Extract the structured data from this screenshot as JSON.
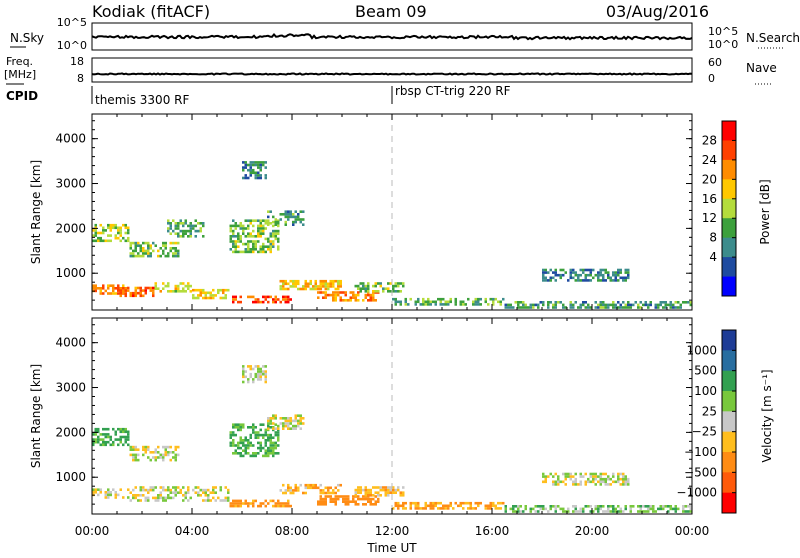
{
  "header": {
    "title": "Kodiak (fitACF)",
    "beam": "Beam 09",
    "date": "03/Aug/2016"
  },
  "summary": {
    "nsky_label": "N.Sky",
    "nsky_ticks": [
      "10^5",
      "10^0"
    ],
    "nsearch_label": "N.Search",
    "nsearch_ticks": [
      "10^5",
      "10^0"
    ],
    "freq_label": "Freq.",
    "freq_unit": "[MHz]",
    "freq_ticks": [
      "18",
      "8"
    ],
    "nave_label": "Nave",
    "nave_ticks": [
      "60",
      "0"
    ],
    "cpid_label": "CPID",
    "cpid_segments": [
      {
        "name": "themis 3300 RF",
        "start_hour": 0
      },
      {
        "name": "rbsp CT-trig 220 RF",
        "start_hour": 12
      }
    ]
  },
  "axes": {
    "xlabel": "Time UT",
    "x_ticks": [
      "00:00",
      "04:00",
      "08:00",
      "12:00",
      "16:00",
      "20:00",
      "00:00"
    ],
    "ylabel": "Slant Range [km]",
    "y_ticks": [
      "4000",
      "3000",
      "2000",
      "1000"
    ]
  },
  "power_colorbar": {
    "label": "Power [dB]",
    "ticks": [
      "28",
      "24",
      "20",
      "16",
      "12",
      "8",
      "4"
    ],
    "colors": [
      "#ff0000",
      "#ff4000",
      "#ff8c00",
      "#ffc800",
      "#b4dc3c",
      "#3ca03c",
      "#3c8c8c",
      "#1e4ba0",
      "#0000ff"
    ]
  },
  "velocity_colorbar": {
    "label": "Velocity [m s⁻¹]",
    "ticks": [
      "1000",
      "500",
      "100",
      "25",
      "−25",
      "−100",
      "−500",
      "−1000"
    ],
    "colors": [
      "#1e3c96",
      "#286ea0",
      "#32a050",
      "#78c83c",
      "#c8c8c8",
      "#ffbe1e",
      "#ff8c14",
      "#ff5a0a",
      "#ff0000"
    ]
  },
  "chart_data": [
    {
      "type": "heatmap",
      "name": "power",
      "x_unit": "hour UT",
      "y_unit": "km",
      "xlim": [
        0,
        24
      ],
      "ylim": [
        180,
        4550
      ],
      "colorbar": "Power [dB]",
      "echo_regions": [
        {
          "x": [
            0.0,
            1.5
          ],
          "y": [
            550,
            750
          ],
          "value": 22
        },
        {
          "x": [
            1.0,
            2.5
          ],
          "y": [
            500,
            700
          ],
          "value": 24
        },
        {
          "x": [
            2.5,
            4.0
          ],
          "y": [
            600,
            800
          ],
          "value": 16
        },
        {
          "x": [
            4.0,
            5.5
          ],
          "y": [
            450,
            650
          ],
          "value": 18
        },
        {
          "x": [
            5.5,
            8.0
          ],
          "y": [
            330,
            500
          ],
          "value": 26
        },
        {
          "x": [
            7.5,
            10.0
          ],
          "y": [
            650,
            850
          ],
          "value": 18
        },
        {
          "x": [
            9.0,
            11.5
          ],
          "y": [
            400,
            600
          ],
          "value": 22
        },
        {
          "x": [
            10.5,
            12.5
          ],
          "y": [
            600,
            800
          ],
          "value": 12
        },
        {
          "x": [
            12.0,
            16.5
          ],
          "y": [
            300,
            450
          ],
          "value": 10
        },
        {
          "x": [
            16.5,
            24.0
          ],
          "y": [
            250,
            380
          ],
          "value": 8
        },
        {
          "x": [
            0.0,
            1.5
          ],
          "y": [
            1700,
            2100
          ],
          "value": 14
        },
        {
          "x": [
            1.5,
            3.5
          ],
          "y": [
            1400,
            1700
          ],
          "value": 12
        },
        {
          "x": [
            3.0,
            4.5
          ],
          "y": [
            1800,
            2200
          ],
          "value": 10
        },
        {
          "x": [
            5.5,
            7.5
          ],
          "y": [
            1500,
            2200
          ],
          "value": 12
        },
        {
          "x": [
            7.0,
            8.5
          ],
          "y": [
            2100,
            2400
          ],
          "value": 8
        },
        {
          "x": [
            6.0,
            7.0
          ],
          "y": [
            3100,
            3500
          ],
          "value": 6
        },
        {
          "x": [
            18.0,
            21.5
          ],
          "y": [
            850,
            1100
          ],
          "value": 6
        }
      ]
    },
    {
      "type": "heatmap",
      "name": "velocity",
      "x_unit": "hour UT",
      "y_unit": "km",
      "xlim": [
        0,
        24
      ],
      "ylim": [
        180,
        4550
      ],
      "colorbar": "Velocity [m s⁻¹]",
      "echo_regions": [
        {
          "x": [
            0.0,
            1.5
          ],
          "y": [
            550,
            750
          ],
          "value": 0
        },
        {
          "x": [
            1.5,
            5.5
          ],
          "y": [
            500,
            800
          ],
          "value": 0
        },
        {
          "x": [
            5.5,
            8.0
          ],
          "y": [
            330,
            500
          ],
          "value": -150
        },
        {
          "x": [
            7.5,
            10.0
          ],
          "y": [
            650,
            850
          ],
          "value": -80
        },
        {
          "x": [
            9.0,
            11.5
          ],
          "y": [
            400,
            600
          ],
          "value": -300
        },
        {
          "x": [
            10.5,
            12.5
          ],
          "y": [
            600,
            800
          ],
          "value": -60
        },
        {
          "x": [
            12.0,
            16.5
          ],
          "y": [
            300,
            450
          ],
          "value": -120
        },
        {
          "x": [
            16.5,
            24.0
          ],
          "y": [
            250,
            380
          ],
          "value": 60
        },
        {
          "x": [
            0.0,
            1.5
          ],
          "y": [
            1700,
            2100
          ],
          "value": 150
        },
        {
          "x": [
            1.5,
            3.5
          ],
          "y": [
            1400,
            1700
          ],
          "value": 0
        },
        {
          "x": [
            5.5,
            7.5
          ],
          "y": [
            1500,
            2200
          ],
          "value": 120
        },
        {
          "x": [
            7.0,
            8.5
          ],
          "y": [
            2100,
            2400
          ],
          "value": 0
        },
        {
          "x": [
            6.0,
            7.0
          ],
          "y": [
            3100,
            3500
          ],
          "value": 0
        },
        {
          "x": [
            18.0,
            21.5
          ],
          "y": [
            850,
            1100
          ],
          "value": 0
        }
      ]
    }
  ]
}
